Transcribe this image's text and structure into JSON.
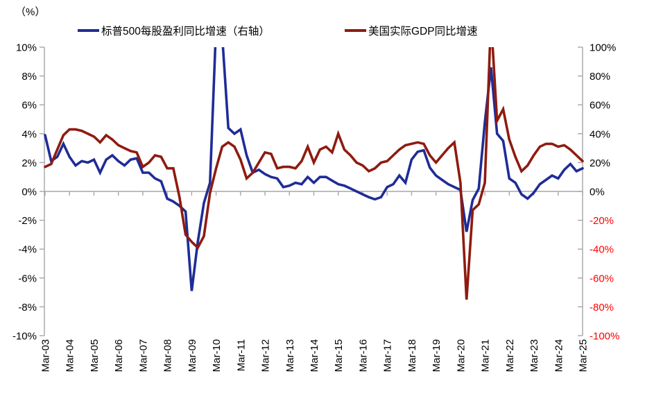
{
  "unit_label": "（%）",
  "legend": [
    {
      "label": "标普500每股盈利同比增速（右轴）",
      "color": "#1F2C96"
    },
    {
      "label": "美国实际GDP同比增速",
      "color": "#8E1B10"
    }
  ],
  "colors": {
    "axis": "#A6A6A6",
    "zero_line": "#A6A6A6",
    "text": "#000000",
    "negative_tick": "#FF0000",
    "eps_line": "#1F2C96",
    "gdp_line": "#8E1B10"
  },
  "chart_data": {
    "type": "line",
    "title": "",
    "x_range": [
      "Mar-03",
      "Mar-25"
    ],
    "points_per_year": 4,
    "x_tick_labels": [
      "Mar-03",
      "Mar-04",
      "Mar-05",
      "Mar-06",
      "Mar-07",
      "Mar-08",
      "Mar-09",
      "Mar-10",
      "Mar-11",
      "Mar-12",
      "Mar-13",
      "Mar-14",
      "Mar-15",
      "Mar-16",
      "Mar-17",
      "Mar-18",
      "Mar-19",
      "Mar-20",
      "Mar-21",
      "Mar-22",
      "Mar-23",
      "Mar-24",
      "Mar-25"
    ],
    "left_axis": {
      "min": -10,
      "max": 10,
      "tick_values": [
        10,
        8,
        6,
        4,
        2,
        0,
        -2,
        -4,
        -6,
        -8,
        -10
      ],
      "tick_labels": [
        "10%",
        "8%",
        "6%",
        "4%",
        "2%",
        "0%",
        "-2%",
        "-4%",
        "-6%",
        "-8%",
        "-10%"
      ]
    },
    "right_axis": {
      "min": -100,
      "max": 100,
      "tick_values": [
        100,
        80,
        60,
        40,
        20,
        0,
        -20,
        -40,
        -60,
        -80,
        -100
      ],
      "tick_labels": [
        "100%",
        "80%",
        "60%",
        "40%",
        "20%",
        "0%",
        "-20%",
        "-40%",
        "-60%",
        "-80%",
        "-100%"
      ]
    },
    "series": [
      {
        "name": "标普500每股盈利同比增速（右轴）",
        "axis": "right",
        "color": "#1F2C96",
        "values": [
          39,
          21,
          24,
          33,
          24,
          18,
          21,
          20,
          22,
          13,
          22,
          25,
          21,
          18,
          22,
          23,
          13,
          13,
          9,
          7,
          -5,
          -7,
          -10,
          -14,
          -69,
          -35,
          -8,
          6,
          115,
          108,
          44,
          40,
          43,
          25,
          13,
          15,
          12,
          10,
          9,
          3,
          4,
          6,
          5,
          10,
          6,
          10,
          10,
          7.5,
          5,
          4,
          2,
          0,
          -2,
          -4,
          -5.5,
          -4,
          3,
          5,
          11,
          6,
          22,
          27.5,
          28.5,
          16.5,
          11,
          8,
          5,
          3,
          1,
          -28,
          -6,
          2,
          48,
          86,
          40,
          35,
          9,
          6,
          -2,
          -5,
          -1,
          5,
          8,
          11,
          9,
          15,
          19,
          14,
          16
        ]
      },
      {
        "name": "美国实际GDP同比增速",
        "axis": "left",
        "color": "#8E1B10",
        "values": [
          1.7,
          1.9,
          2.9,
          3.9,
          4.3,
          4.3,
          4.2,
          4.0,
          3.8,
          3.4,
          3.9,
          3.6,
          3.2,
          3.0,
          2.8,
          2.7,
          1.7,
          2.0,
          2.5,
          2.4,
          1.6,
          1.6,
          -0.4,
          -3.0,
          -3.5,
          -3.9,
          -3.1,
          -0.1,
          1.6,
          3.1,
          3.4,
          3.1,
          2.2,
          0.9,
          1.3,
          2.0,
          2.7,
          2.6,
          1.6,
          1.7,
          1.7,
          1.6,
          2.1,
          3.1,
          2.0,
          2.9,
          3.1,
          2.7,
          4.0,
          2.9,
          2.5,
          2.0,
          1.8,
          1.4,
          1.6,
          2.0,
          2.1,
          2.5,
          2.9,
          3.2,
          3.3,
          3.4,
          3.3,
          2.5,
          2.0,
          2.5,
          3.0,
          3.4,
          0.6,
          -7.5,
          -1.3,
          -0.9,
          0.6,
          12.0,
          4.9,
          5.7,
          3.6,
          2.4,
          1.4,
          1.8,
          2.5,
          3.1,
          3.3,
          3.3,
          3.1,
          3.2,
          2.9,
          2.5,
          2.1
        ]
      }
    ]
  }
}
